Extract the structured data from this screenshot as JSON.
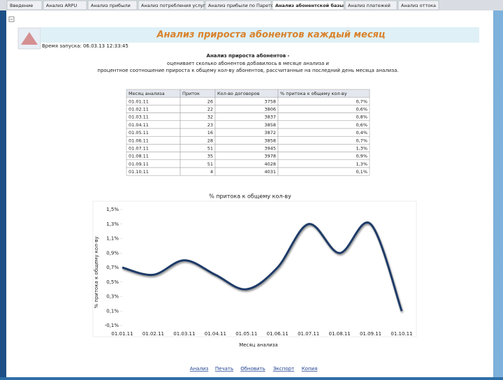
{
  "tabs": [
    "Введение",
    "Анализ ARPU",
    "Анализ прибыли",
    "Анализ потребления услуг",
    "Анализ прибыли по Парето",
    "Анализ абонентской базы",
    "Анализ платежей",
    "Анализ оттока"
  ],
  "header": {
    "title": "Анализ прироста абонентов каждый месяц",
    "run_time": "Время запуска: 06.03.13 12:33:45"
  },
  "description": {
    "heading": "Анализ прироста абонентов -",
    "lines": [
      "оценивает сколько абонентов добавилось в месяце анализа и",
      "процентное соотношение прироста к общему кол-ву абонентов, рассчитанные на последний день месяца анализа."
    ]
  },
  "table": {
    "headers": [
      "Месяц анализа",
      "Приток",
      "Кол-во договоров",
      "% притока к общему кол-ву"
    ],
    "rows": [
      [
        "01.01.11",
        "26",
        "3758",
        "0,7%"
      ],
      [
        "01.02.11",
        "22",
        "3806",
        "0,6%"
      ],
      [
        "01.03.11",
        "32",
        "3837",
        "0,8%"
      ],
      [
        "01.04.11",
        "23",
        "3858",
        "0,6%"
      ],
      [
        "01.05.11",
        "16",
        "3872",
        "0,4%"
      ],
      [
        "01.06.11",
        "28",
        "3858",
        "0,7%"
      ],
      [
        "01.07.11",
        "51",
        "3945",
        "1,3%"
      ],
      [
        "01.08.11",
        "35",
        "3978",
        "0,9%"
      ],
      [
        "01.09.11",
        "51",
        "4028",
        "1,3%"
      ],
      [
        "01.10.11",
        "4",
        "4031",
        "0,1%"
      ]
    ]
  },
  "chart_data": {
    "type": "line",
    "title": "% притока к общему кол-ву",
    "y_label": "% притока к общему кол-ву",
    "x_label": "Месяц анализа",
    "categories": [
      "01.01.11",
      "01.02.11",
      "01.03.11",
      "01.04.11",
      "01.05.11",
      "01.06.11",
      "01.07.11",
      "01.08.11",
      "01.09.11",
      "01.10.11"
    ],
    "values": [
      0.7,
      0.6,
      0.8,
      0.6,
      0.4,
      0.7,
      1.3,
      0.9,
      1.3,
      0.1
    ],
    "color": "#1f3a68",
    "smooth": true,
    "ylim": [
      -0.1,
      1.5
    ],
    "yticks": [
      {
        "value": -0.1,
        "label": "-0,1%"
      },
      {
        "value": 0.1,
        "label": "0,1%"
      },
      {
        "value": 0.3,
        "label": "0,3%"
      },
      {
        "value": 0.5,
        "label": "0,5%"
      },
      {
        "value": 0.7,
        "label": "0,7%"
      },
      {
        "value": 0.9,
        "label": "0,9%"
      },
      {
        "value": 1.1,
        "label": "1,1%"
      },
      {
        "value": 1.3,
        "label": "1,3%"
      },
      {
        "value": 1.5,
        "label": "1,5%"
      }
    ]
  },
  "footer": {
    "links": [
      "Анализ",
      "Печать",
      "Обновить",
      "Экспорт",
      "Копия"
    ]
  }
}
